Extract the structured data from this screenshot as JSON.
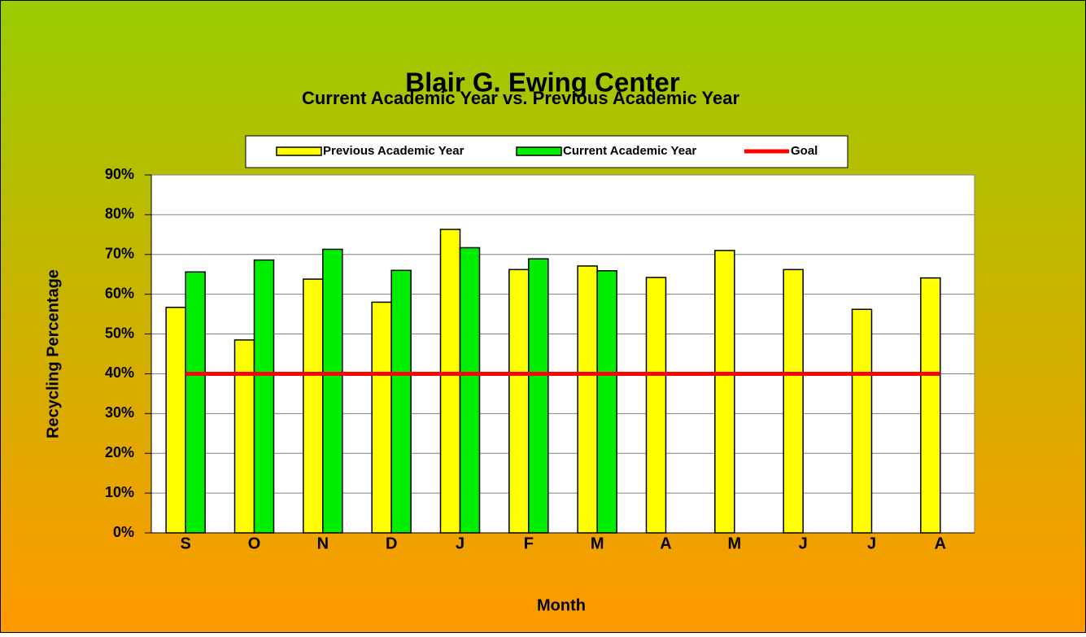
{
  "chart_data": {
    "type": "bar",
    "title": "Blair G. Ewing Center",
    "subtitle": "Current Academic Year vs. Previous Academic Year",
    "x_label": "Month",
    "y_label": "Recycling Percentage",
    "categories": [
      "S",
      "O",
      "N",
      "D",
      "J",
      "F",
      "M",
      "A",
      "M",
      "J",
      "J",
      "A"
    ],
    "series": [
      {
        "name": "Previous Academic Year",
        "color": "#ffff00",
        "type": "bar",
        "values": [
          56.7,
          48.5,
          63.8,
          58,
          76.3,
          66.2,
          67.1,
          64.2,
          71,
          66.2,
          56.2,
          64.1
        ]
      },
      {
        "name": "Current Academic Year",
        "color": "#00ee00",
        "type": "bar",
        "values": [
          65.6,
          68.6,
          71.3,
          66,
          71.7,
          68.9,
          65.9,
          null,
          null,
          null,
          null,
          null
        ]
      },
      {
        "name": "Goal",
        "color": "#ff0000",
        "type": "line",
        "values": [
          40,
          40,
          40,
          40,
          40,
          40,
          40,
          40,
          40,
          40,
          40,
          40
        ]
      }
    ],
    "ylim": [
      0,
      90
    ],
    "yticks": [
      {
        "value": 0,
        "label": "0%"
      },
      {
        "value": 10,
        "label": "10%"
      },
      {
        "value": 20,
        "label": "20%"
      },
      {
        "value": 30,
        "label": "30%"
      },
      {
        "value": 40,
        "label": "40%"
      },
      {
        "value": 50,
        "label": "50%"
      },
      {
        "value": 60,
        "label": "60%"
      },
      {
        "value": 70,
        "label": "70%"
      },
      {
        "value": 80,
        "label": "80%"
      },
      {
        "value": 90,
        "label": "90%"
      }
    ],
    "grid": true,
    "legend": "top"
  }
}
